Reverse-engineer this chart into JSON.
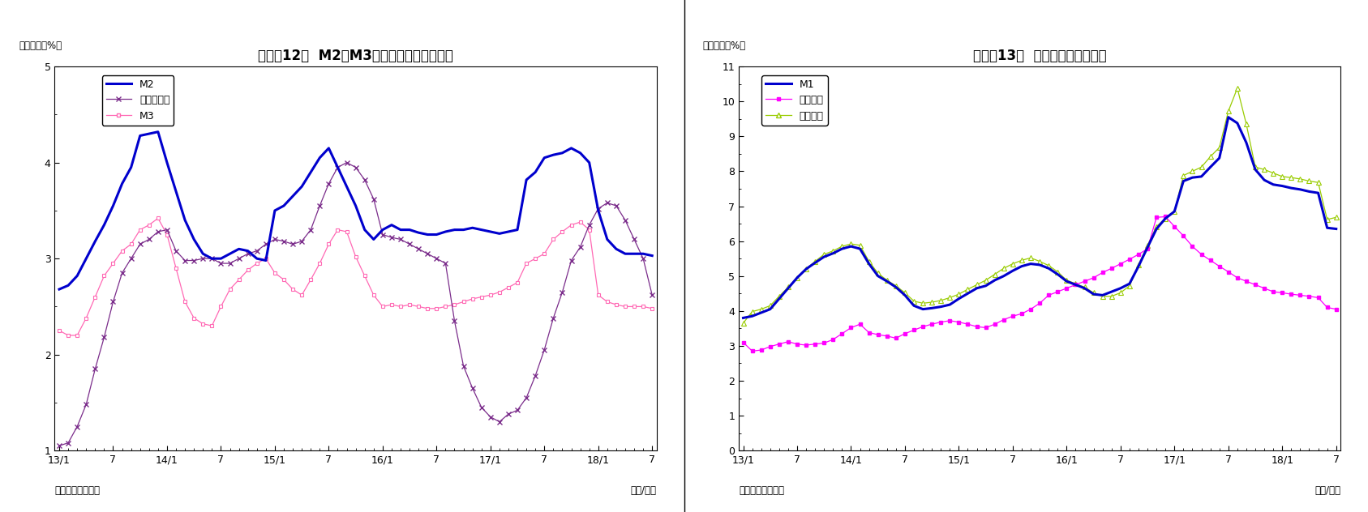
{
  "chart1": {
    "title": "（図表12）  M2、M3、広義流動性の伸び率",
    "ylabel": "（前年比、%）",
    "source": "（資料）日本銀行",
    "year_month_label": "（年/月）",
    "ylim": [
      1,
      5
    ],
    "yticks": [
      1,
      2,
      3,
      4,
      5
    ],
    "xtick_labels": [
      "13/1",
      "7",
      "14/1",
      "7",
      "15/1",
      "7",
      "16/1",
      "7",
      "17/1",
      "7",
      "18/1",
      "7"
    ],
    "M2": [
      2.68,
      2.72,
      2.82,
      3.0,
      3.18,
      3.35,
      3.55,
      3.78,
      3.95,
      4.28,
      4.3,
      4.32,
      4.0,
      3.7,
      3.4,
      3.2,
      3.05,
      3.0,
      3.0,
      3.05,
      3.1,
      3.08,
      3.0,
      2.98,
      3.5,
      3.55,
      3.65,
      3.75,
      3.9,
      4.05,
      4.15,
      3.95,
      3.75,
      3.55,
      3.3,
      3.2,
      3.3,
      3.35,
      3.3,
      3.3,
      3.27,
      3.25,
      3.25,
      3.28,
      3.3,
      3.3,
      3.32,
      3.3,
      3.28,
      3.26,
      3.28,
      3.3,
      3.82,
      3.9,
      4.05,
      4.08,
      4.1,
      4.15,
      4.1,
      4.0,
      3.5,
      3.2,
      3.1,
      3.05,
      3.05,
      3.05,
      3.03
    ],
    "M3": [
      2.25,
      2.2,
      2.2,
      2.38,
      2.6,
      2.82,
      2.95,
      3.08,
      3.15,
      3.3,
      3.35,
      3.42,
      3.25,
      2.9,
      2.55,
      2.38,
      2.32,
      2.3,
      2.5,
      2.68,
      2.78,
      2.88,
      2.95,
      3.0,
      2.85,
      2.78,
      2.68,
      2.62,
      2.78,
      2.95,
      3.15,
      3.3,
      3.28,
      3.02,
      2.82,
      2.62,
      2.5,
      2.52,
      2.5,
      2.52,
      2.5,
      2.48,
      2.48,
      2.5,
      2.52,
      2.55,
      2.58,
      2.6,
      2.62,
      2.65,
      2.7,
      2.75,
      2.95,
      3.0,
      3.05,
      3.2,
      3.28,
      3.35,
      3.38,
      3.3,
      2.62,
      2.55,
      2.52,
      2.5,
      2.5,
      2.5,
      2.48
    ],
    "kougi": [
      1.05,
      1.08,
      1.25,
      1.48,
      1.85,
      2.18,
      2.55,
      2.85,
      3.0,
      3.15,
      3.2,
      3.28,
      3.3,
      3.08,
      2.98,
      2.98,
      3.0,
      3.0,
      2.95,
      2.95,
      3.0,
      3.05,
      3.08,
      3.15,
      3.2,
      3.18,
      3.15,
      3.18,
      3.3,
      3.55,
      3.78,
      3.95,
      4.0,
      3.95,
      3.82,
      3.62,
      3.25,
      3.22,
      3.2,
      3.15,
      3.1,
      3.05,
      3.0,
      2.95,
      2.35,
      1.88,
      1.65,
      1.45,
      1.35,
      1.3,
      1.38,
      1.42,
      1.55,
      1.78,
      2.05,
      2.38,
      2.65,
      2.98,
      3.12,
      3.35,
      3.52,
      3.58,
      3.55,
      3.4,
      3.2,
      3.0,
      2.62
    ],
    "legend_M2": "M2",
    "legend_kougi": "広義流動性",
    "legend_M3": "M3"
  },
  "chart2": {
    "title": "（図表13）  現金・預金の伸び率",
    "ylabel": "（前年比、%）",
    "source": "（資料）日本銀行",
    "year_month_label": "（年/月）",
    "ylim": [
      0,
      11
    ],
    "yticks": [
      0,
      1,
      2,
      3,
      4,
      5,
      6,
      7,
      8,
      9,
      10,
      11
    ],
    "xtick_labels": [
      "13/1",
      "7",
      "14/1",
      "7",
      "15/1",
      "7",
      "16/1",
      "7",
      "17/1",
      "7",
      "18/1",
      "7"
    ],
    "M1": [
      3.8,
      3.85,
      3.95,
      4.05,
      4.35,
      4.65,
      4.95,
      5.2,
      5.38,
      5.55,
      5.65,
      5.78,
      5.85,
      5.78,
      5.35,
      5.0,
      4.85,
      4.68,
      4.45,
      4.15,
      4.05,
      4.08,
      4.12,
      4.18,
      4.35,
      4.5,
      4.65,
      4.72,
      4.88,
      5.0,
      5.15,
      5.28,
      5.35,
      5.32,
      5.22,
      5.05,
      4.85,
      4.75,
      4.65,
      4.48,
      4.45,
      4.55,
      4.65,
      4.78,
      5.28,
      5.82,
      6.35,
      6.65,
      6.85,
      7.72,
      7.82,
      7.85,
      8.12,
      8.38,
      9.55,
      9.38,
      8.82,
      8.05,
      7.75,
      7.62,
      7.58,
      7.52,
      7.48,
      7.42,
      7.38,
      6.38,
      6.35
    ],
    "genkin": [
      3.1,
      2.85,
      2.88,
      2.98,
      3.05,
      3.12,
      3.05,
      3.02,
      3.05,
      3.08,
      3.18,
      3.35,
      3.52,
      3.62,
      3.38,
      3.32,
      3.28,
      3.22,
      3.35,
      3.45,
      3.55,
      3.62,
      3.68,
      3.72,
      3.68,
      3.62,
      3.55,
      3.52,
      3.62,
      3.75,
      3.85,
      3.92,
      4.05,
      4.22,
      4.45,
      4.55,
      4.65,
      4.75,
      4.85,
      4.95,
      5.1,
      5.22,
      5.35,
      5.48,
      5.62,
      5.78,
      6.68,
      6.7,
      6.42,
      6.15,
      5.85,
      5.62,
      5.45,
      5.28,
      5.12,
      4.95,
      4.85,
      4.75,
      4.65,
      4.55,
      4.52,
      4.48,
      4.45,
      4.42,
      4.38,
      4.1,
      4.05
    ],
    "yokin": [
      3.65,
      3.98,
      4.05,
      4.15,
      4.42,
      4.68,
      4.95,
      5.2,
      5.42,
      5.62,
      5.72,
      5.85,
      5.92,
      5.88,
      5.42,
      5.08,
      4.88,
      4.72,
      4.52,
      4.28,
      4.22,
      4.25,
      4.3,
      4.38,
      4.48,
      4.62,
      4.75,
      4.88,
      5.05,
      5.22,
      5.35,
      5.45,
      5.52,
      5.42,
      5.3,
      5.12,
      4.88,
      4.78,
      4.68,
      4.52,
      4.42,
      4.42,
      4.52,
      4.72,
      5.32,
      5.88,
      6.42,
      6.65,
      6.85,
      7.88,
      8.0,
      8.12,
      8.42,
      8.68,
      9.72,
      10.38,
      9.35,
      8.12,
      8.05,
      7.95,
      7.85,
      7.82,
      7.78,
      7.72,
      7.68,
      6.62,
      6.68
    ],
    "legend_M1": "M1",
    "legend_genkin": "現金通貨",
    "legend_yokin": "預金通貨"
  },
  "colors": {
    "M2": "#0000CD",
    "kougi": "#7B2D8B",
    "M3": "#FF69B4",
    "M1": "#0000CD",
    "genkin": "#FF00FF",
    "yokin": "#99CC00"
  }
}
